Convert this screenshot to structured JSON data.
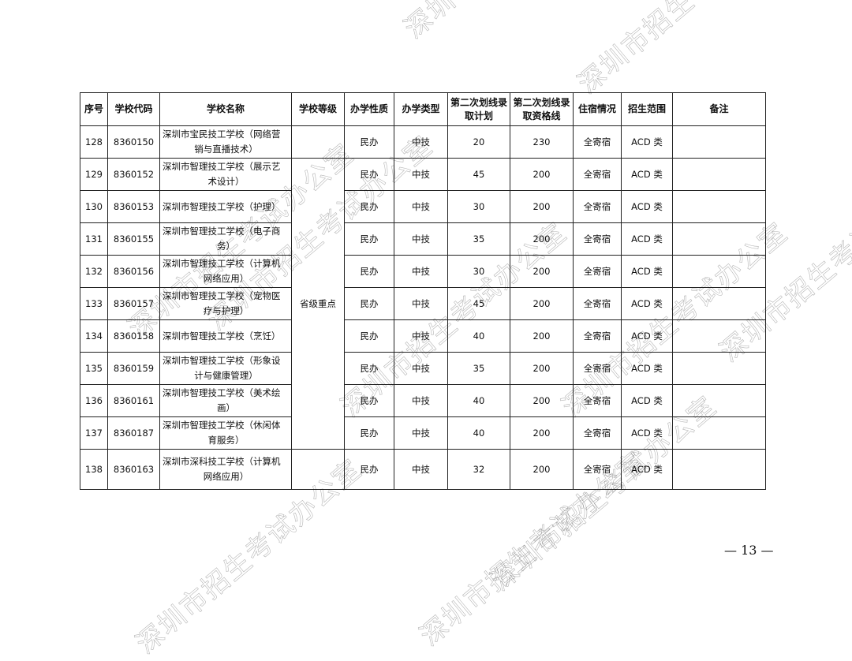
{
  "table": {
    "headers": [
      "序号",
      "学校代码",
      "学校名称",
      "学校等级",
      "办学性质",
      "办学类型",
      "第二次划线录取计划",
      "第二次划线录取资格线",
      "住宿情况",
      "招生范围",
      "备注"
    ],
    "merged_level": "省级重点",
    "rows": [
      {
        "no": "128",
        "code": "8360150",
        "name1": "深圳市宝民技工学校（网络营",
        "name2": "销与直播技术）",
        "nature": "民办",
        "type": "中技",
        "plan": "20",
        "line": "230",
        "lodging": "全寄宿",
        "range": "ACD 类",
        "note": ""
      },
      {
        "no": "129",
        "code": "8360152",
        "name1": "深圳市智理技工学校（展示艺",
        "name2": "术设计）",
        "nature": "民办",
        "type": "中技",
        "plan": "45",
        "line": "200",
        "lodging": "全寄宿",
        "range": "ACD 类",
        "note": ""
      },
      {
        "no": "130",
        "code": "8360153",
        "name1": "深圳市智理技工学校（护理）",
        "name2": "",
        "nature": "民办",
        "type": "中技",
        "plan": "30",
        "line": "200",
        "lodging": "全寄宿",
        "range": "ACD 类",
        "note": ""
      },
      {
        "no": "131",
        "code": "8360155",
        "name1": "深圳市智理技工学校（电子商",
        "name2": "务）",
        "nature": "民办",
        "type": "中技",
        "plan": "35",
        "line": "200",
        "lodging": "全寄宿",
        "range": "ACD 类",
        "note": ""
      },
      {
        "no": "132",
        "code": "8360156",
        "name1": "深圳市智理技工学校（计算机",
        "name2": "网络应用）",
        "nature": "民办",
        "type": "中技",
        "plan": "30",
        "line": "200",
        "lodging": "全寄宿",
        "range": "ACD 类",
        "note": ""
      },
      {
        "no": "133",
        "code": "8360157",
        "name1": "深圳市智理技工学校（宠物医",
        "name2": "疗与护理）",
        "nature": "民办",
        "type": "中技",
        "plan": "45",
        "line": "200",
        "lodging": "全寄宿",
        "range": "ACD 类",
        "note": ""
      },
      {
        "no": "134",
        "code": "8360158",
        "name1": "深圳市智理技工学校（烹饪）",
        "name2": "",
        "nature": "民办",
        "type": "中技",
        "plan": "40",
        "line": "200",
        "lodging": "全寄宿",
        "range": "ACD 类",
        "note": ""
      },
      {
        "no": "135",
        "code": "8360159",
        "name1": "深圳市智理技工学校（形象设",
        "name2": "计与健康管理）",
        "nature": "民办",
        "type": "中技",
        "plan": "35",
        "line": "200",
        "lodging": "全寄宿",
        "range": "ACD 类",
        "note": ""
      },
      {
        "no": "136",
        "code": "8360161",
        "name1": "深圳市智理技工学校（美术绘",
        "name2": "画）",
        "nature": "民办",
        "type": "中技",
        "plan": "40",
        "line": "200",
        "lodging": "全寄宿",
        "range": "ACD 类",
        "note": ""
      },
      {
        "no": "137",
        "code": "8360187",
        "name1": "深圳市智理技工学校（休闲体",
        "name2": "育服务）",
        "nature": "民办",
        "type": "中技",
        "plan": "40",
        "line": "200",
        "lodging": "全寄宿",
        "range": "ACD 类",
        "note": ""
      },
      {
        "no": "138",
        "code": "8360163",
        "name1": "深圳市深科技工学校（计算机",
        "name2": "网络应用）",
        "nature": "民办",
        "type": "中技",
        "plan": "32",
        "line": "200",
        "lodging": "全寄宿",
        "range": "ACD 类",
        "note": ""
      }
    ]
  },
  "watermark": "深圳市招生考试办公室",
  "page_number": "— 13 —"
}
